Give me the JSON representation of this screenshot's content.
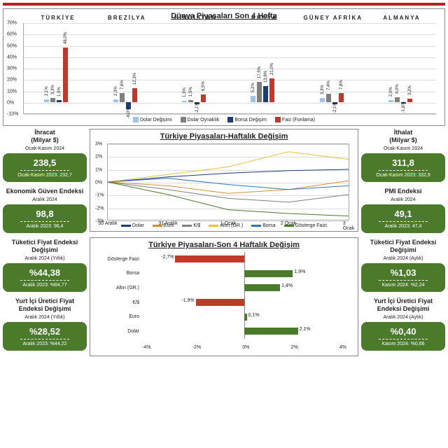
{
  "colors": {
    "c1": "#9fc5e8",
    "c2": "#7f7f7f",
    "c3": "#1f3b73",
    "c4": "#c0392b",
    "green": "#4a7a2a",
    "red": "#c0392b"
  },
  "top": {
    "title": "Dünya Piyasaları Son 4 Hafta",
    "countries": [
      "TÜRKİYE",
      "BREZİLYA",
      "HİNDİSTAN",
      "RUSYA",
      "GÜNEY AFRİKA",
      "ALMANYA"
    ],
    "yticks": [
      -10,
      0,
      10,
      20,
      30,
      40,
      50,
      60,
      70
    ],
    "legend": [
      "Dolar Değişimi",
      "Dolar Oynaklık",
      "Borsa Değişim",
      "Faiz (Fonlama)"
    ],
    "series": [
      [
        2.1,
        3.3,
        1.9,
        48.0
      ],
      [
        2.3,
        7.6,
        -6.0,
        12.3
      ],
      [
        1.3,
        1.5,
        -2.1,
        6.5
      ],
      [
        5.2,
        17.5,
        13.8,
        21.0
      ],
      [
        3.3,
        7.4,
        -2.1,
        7.8
      ],
      [
        2.0,
        4.0,
        -1.6,
        3.2
      ]
    ]
  },
  "left": [
    {
      "title": "İhracat",
      "sub1": "(Milyar $)",
      "sub2": "Ocak-Kasım 2024",
      "val": "238,5",
      "prev": "Ocak-Kasım 2023: 232,7"
    },
    {
      "title": "Ekonomik Güven Endeksi",
      "sub2": "Aralık 2024",
      "val": "98,8",
      "prev": "Aralık 2023: 96,4"
    },
    {
      "title": "Tüketici Fiyat Endeksi Değişimi",
      "sub2": "Aralık 2024 (Yıllık)",
      "val": "%44,38",
      "prev": "Aralık 2023: %64,77"
    },
    {
      "title": "Yurt İçi Üretici Fiyat Endeksi Değişimi",
      "sub2": "Aralık 2024 (Yıllık)",
      "val": "%28,52",
      "prev": "Aralık 2023: %44,22"
    }
  ],
  "right": [
    {
      "title": "İthalat",
      "sub1": "(Milyar $)",
      "sub2": "Ocak-Kasım 2024",
      "val": "311,8",
      "prev": "Ocak-Kasım 2023: 332,9"
    },
    {
      "title": "PMI Endeksi",
      "sub2": "Aralık 2024",
      "val": "49,1",
      "prev": "Aralık 2023: 47,4"
    },
    {
      "title": "Tüketici Fiyat Endeksi Değişimi",
      "sub2": "Aralık 2024 (Aylık)",
      "val": "%1,03",
      "prev": "Kasım 2024: %2,24"
    },
    {
      "title": "Yurt İçi Üretici Fiyat Endeksi Değişimi",
      "sub2": "Aralık 2024 (Aylık)",
      "val": "%0,40",
      "prev": "Kasım 2024: %0,66"
    }
  ],
  "weekly": {
    "title": "Türkiye Piyasaları-Haftalık Değişim",
    "yticks": [
      -3,
      -2,
      -1,
      0,
      1,
      2,
      3
    ],
    "xticks": [
      "30 Aralık",
      "31 Aralık",
      "1 Ocak",
      "2 Ocak",
      "3 Ocak"
    ],
    "legend": [
      [
        "Dolar",
        "#1f3b73"
      ],
      [
        "Euro",
        "#d98e2b"
      ],
      [
        "€/$",
        "#7f7f7f"
      ],
      [
        "Altın (GR.)",
        "#e8c23a"
      ],
      [
        "Borsa",
        "#2e75b6"
      ],
      [
        "Gösterge Faizi",
        "#4a7a2a"
      ]
    ],
    "lines": {
      "Dolar": {
        "color": "#1f3b73",
        "pts": [
          0,
          0.4,
          0.7,
          0.9,
          1.0
        ]
      },
      "Euro": {
        "color": "#d98e2b",
        "pts": [
          0,
          -0.3,
          -0.9,
          -0.6,
          0.1
        ]
      },
      "EurUsd": {
        "color": "#7f7f7f",
        "pts": [
          0,
          -0.6,
          -1.3,
          -1.6,
          -1.0
        ]
      },
      "Altin": {
        "color": "#e8c23a",
        "pts": [
          0,
          0.6,
          1.2,
          2.4,
          1.8
        ]
      },
      "Borsa": {
        "color": "#2e75b6",
        "pts": [
          0,
          0.3,
          -0.2,
          -0.6,
          -0.3
        ]
      },
      "Faizi": {
        "color": "#4a7a2a",
        "pts": [
          0,
          -1.0,
          -2.2,
          -2.5,
          -2.7
        ]
      }
    }
  },
  "hbar": {
    "title": "Türkiye Piyasaları-Son 4 Haftalık Değişim",
    "xticks": [
      -4,
      -2,
      0,
      2,
      4
    ],
    "rows": [
      {
        "cat": "Gösterge Faizi",
        "val": -2.7,
        "label": "-2,7%"
      },
      {
        "cat": "Borsa",
        "val": 1.9,
        "label": "1,9%"
      },
      {
        "cat": "Altın (GR.)",
        "val": 1.4,
        "label": "1,4%"
      },
      {
        "cat": "€/$",
        "val": -1.9,
        "label": "-1,9%"
      },
      {
        "cat": "Euro",
        "val": 0.1,
        "label": "0,1%"
      },
      {
        "cat": "Dolar",
        "val": 2.1,
        "label": "2,1%"
      }
    ]
  }
}
